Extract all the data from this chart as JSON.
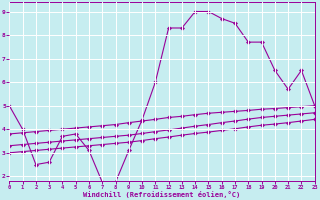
{
  "xlabel": "Windchill (Refroidissement éolien,°C)",
  "bg_color": "#c6edf0",
  "line_color": "#990099",
  "grid_color": "#ffffff",
  "xlim": [
    0,
    23
  ],
  "ylim": [
    1.8,
    9.4
  ],
  "yticks": [
    2,
    3,
    4,
    5,
    6,
    7,
    8,
    9
  ],
  "xticks": [
    0,
    1,
    2,
    3,
    4,
    5,
    6,
    7,
    8,
    9,
    10,
    11,
    12,
    13,
    14,
    15,
    16,
    17,
    18,
    19,
    20,
    21,
    22,
    23
  ],
  "line1_x": [
    0,
    1,
    2,
    3,
    4,
    5,
    6,
    7,
    8,
    9,
    10,
    11,
    12,
    13,
    14,
    15,
    16,
    17,
    18,
    19,
    20,
    21,
    22,
    23
  ],
  "line1_y": [
    5.0,
    4.0,
    2.5,
    2.6,
    3.7,
    3.8,
    3.1,
    1.75,
    1.75,
    3.1,
    4.4,
    6.0,
    8.3,
    8.3,
    9.0,
    9.0,
    8.7,
    8.5,
    7.7,
    7.7,
    6.5,
    5.7,
    6.5,
    5.0
  ],
  "line2_x": [
    0,
    1,
    2,
    3,
    4,
    5,
    6,
    7,
    8,
    9,
    10,
    11,
    12,
    13,
    14,
    15,
    16,
    17,
    18,
    19,
    20,
    21,
    22,
    23
  ],
  "line2_y": [
    3.8,
    3.85,
    3.9,
    3.95,
    4.0,
    4.05,
    4.1,
    4.15,
    4.2,
    4.28,
    4.35,
    4.42,
    4.5,
    4.55,
    4.62,
    4.68,
    4.72,
    4.76,
    4.8,
    4.85,
    4.88,
    4.92,
    4.96,
    5.0
  ],
  "line3_x": [
    0,
    1,
    2,
    3,
    4,
    5,
    6,
    7,
    8,
    9,
    10,
    11,
    12,
    13,
    14,
    15,
    16,
    17,
    18,
    19,
    20,
    21,
    22,
    23
  ],
  "line3_y": [
    3.3,
    3.35,
    3.4,
    3.45,
    3.5,
    3.55,
    3.6,
    3.65,
    3.7,
    3.75,
    3.82,
    3.9,
    3.97,
    4.05,
    4.13,
    4.2,
    4.28,
    4.35,
    4.43,
    4.5,
    4.55,
    4.6,
    4.65,
    4.7
  ],
  "line4_x": [
    0,
    1,
    2,
    3,
    4,
    5,
    6,
    7,
    8,
    9,
    10,
    11,
    12,
    13,
    14,
    15,
    16,
    17,
    18,
    19,
    20,
    21,
    22,
    23
  ],
  "line4_y": [
    3.0,
    3.05,
    3.1,
    3.15,
    3.2,
    3.25,
    3.3,
    3.35,
    3.4,
    3.45,
    3.52,
    3.6,
    3.67,
    3.75,
    3.82,
    3.88,
    3.95,
    4.02,
    4.1,
    4.17,
    4.22,
    4.28,
    4.35,
    4.42
  ]
}
